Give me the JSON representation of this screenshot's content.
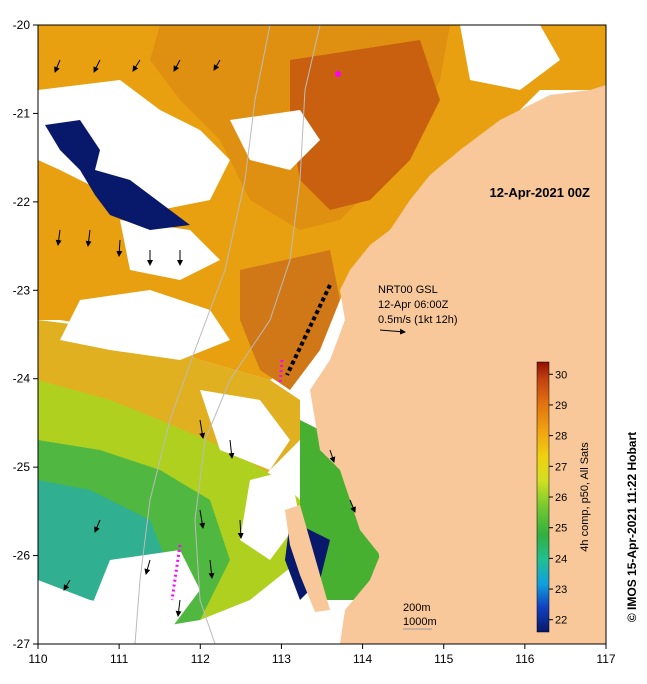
{
  "map": {
    "date_label": "12-Apr-2021 00Z",
    "current_annotation": {
      "line1": "NRT00 GSL",
      "line2": "12-Apr 06:00Z",
      "line3": "0.5m/s (1kt 12h)"
    },
    "contour_labels": {
      "depth1": "200m",
      "depth2": "1000m"
    },
    "x_axis": {
      "ticks": [
        "110",
        "111",
        "112",
        "113",
        "114",
        "115",
        "116",
        "117"
      ],
      "range": [
        110,
        117
      ]
    },
    "y_axis": {
      "ticks": [
        "-20",
        "-21",
        "-22",
        "-23",
        "-24",
        "-25",
        "-26",
        "-27"
      ],
      "range": [
        -27,
        -20
      ]
    },
    "colorbar": {
      "label": "4h comp, p50, All Sats",
      "ticks": [
        "30",
        "29",
        "28",
        "27",
        "26",
        "25",
        "24",
        "23",
        "22"
      ],
      "range": [
        21.6,
        30.4
      ],
      "colors": [
        "#08186a",
        "#1040c0",
        "#10a0e0",
        "#20c090",
        "#30b040",
        "#70c830",
        "#d0e020",
        "#f0d010",
        "#f0a010",
        "#e07010",
        "#c04010",
        "#901000"
      ]
    },
    "credit": "© IMOS 15-Apr-2021 11:22 Hobart"
  }
}
